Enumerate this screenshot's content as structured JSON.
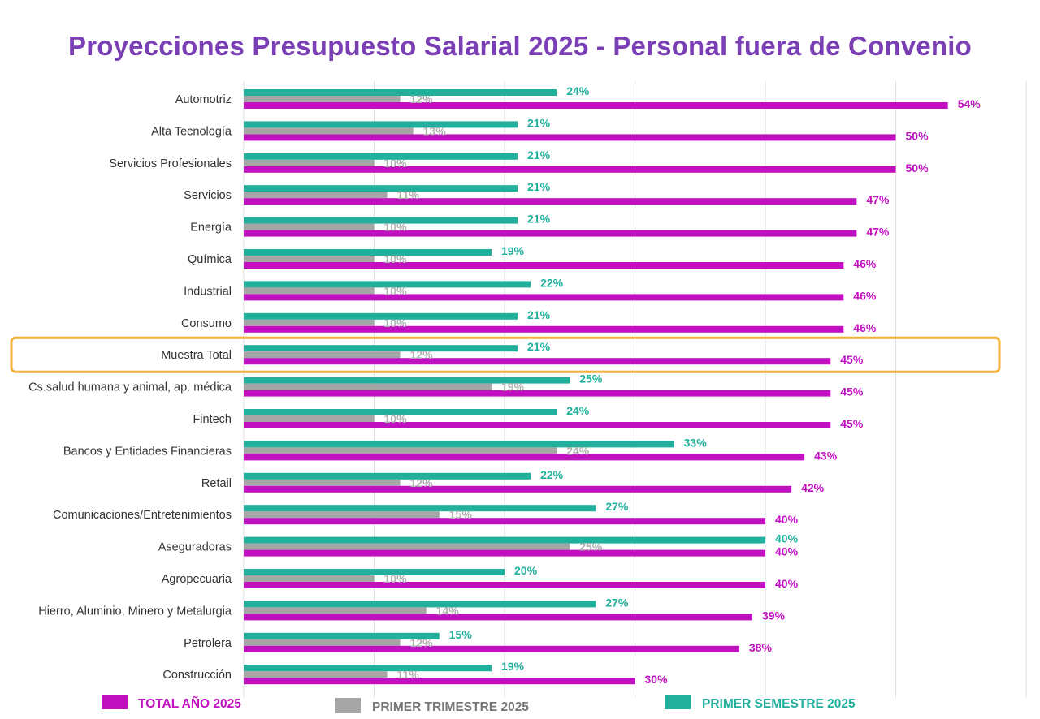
{
  "chart_data": {
    "type": "bar",
    "orientation": "horizontal",
    "title": "Proyecciones Presupuesto Salarial 2025 -  Personal fuera de Convenio",
    "categories": [
      "Automotriz",
      "Alta Tecnología",
      "Servicios Profesionales",
      "Servicios",
      "Energía",
      "Química",
      "Industrial",
      "Consumo",
      "Muestra Total",
      "Cs.salud humana y animal, ap. médica",
      "Fintech",
      "Bancos y Entidades Financieras",
      "Retail",
      "Comunicaciones/Entretenimientos",
      "Aseguradoras",
      "Agropecuaria",
      "Hierro, Aluminio, Minero y Metalurgia",
      "Petrolera",
      "Construcción"
    ],
    "series": [
      {
        "name": "PRIMER SEMESTRE 2025",
        "color": "#20b09c",
        "values": [
          24,
          21,
          21,
          21,
          21,
          19,
          22,
          21,
          21,
          25,
          24,
          33,
          22,
          27,
          40,
          20,
          27,
          15,
          19
        ],
        "labels": [
          "24%",
          "21%",
          "21%",
          "21%",
          "21%",
          "19%",
          "22%",
          "21%",
          "21%",
          "25%",
          "24%",
          "33%",
          "22%",
          "27%",
          "40%",
          "20%",
          "27%",
          "15%",
          "19%"
        ]
      },
      {
        "name": "PRIMER TRIMESTRE 2025",
        "color": "#a6a6a6",
        "values": [
          12,
          13,
          10,
          11,
          10,
          10,
          10,
          10,
          12,
          19,
          10,
          24,
          12,
          15,
          25,
          10,
          14,
          12,
          11
        ],
        "labels": [
          "12%",
          "13%",
          "10%",
          "11%",
          "10%",
          "10%",
          "10%",
          "10%",
          "12%",
          "19%",
          "10%",
          "24%",
          "12%",
          "15%",
          "25%",
          "10%",
          "14%",
          "12%",
          "11%"
        ]
      },
      {
        "name": "TOTAL AÑO 2025",
        "color": "#c010c0",
        "values": [
          54,
          50,
          50,
          47,
          47,
          46,
          46,
          46,
          45,
          45,
          45,
          43,
          42,
          40,
          40,
          40,
          39,
          38,
          30
        ],
        "labels": [
          "54%",
          "50%",
          "50%",
          "47%",
          "47%",
          "46%",
          "46%",
          "46%",
          "45%",
          "45%",
          "45%",
          "43%",
          "42%",
          "40%",
          "40%",
          "40%",
          "39%",
          "38%",
          "30%"
        ]
      }
    ],
    "legend": {
      "position": "bottom",
      "order": [
        "TOTAL AÑO 2025",
        "PRIMER TRIMESTRE 2025",
        "PRIMER SEMESTRE 2025"
      ]
    },
    "highlighted_category": "Muestra Total",
    "highlight_color": "#f5b133",
    "xlim": [
      0,
      60
    ],
    "grid": true,
    "title_color": "#7b3fb5"
  }
}
